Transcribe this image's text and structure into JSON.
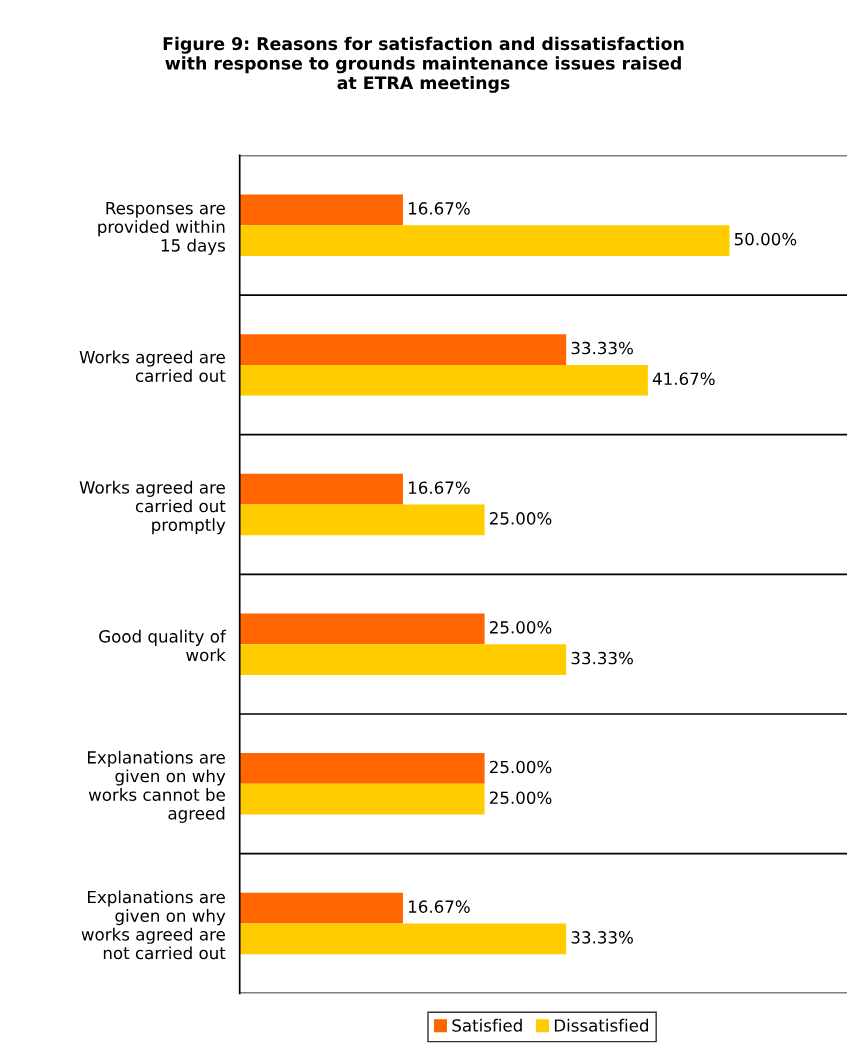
{
  "chart_data": {
    "type": "bar",
    "orientation": "horizontal",
    "title": "Figure 9: Reasons for satisfaction and dissatisfaction\nwith response to grounds maintenance issues raised\nat ETRA meetings",
    "categories": [
      "Responses are\nprovided within\n15 days",
      "Works agreed are\ncarried out",
      "Works agreed are\ncarried out\npromptly",
      "Good quality of\nwork",
      "Explanations are\ngiven on why\nworks cannot be\nagreed",
      "Explanations are\ngiven on why\nworks agreed are\nnot carried out"
    ],
    "series": [
      {
        "name": "Satisfied",
        "color": "#ff6600",
        "values": [
          16.67,
          33.33,
          16.67,
          25.0,
          25.0,
          16.67
        ],
        "value_labels": [
          "16.67%",
          "33.33%",
          "16.67%",
          "25.00%",
          "25.00%",
          "16.67%"
        ]
      },
      {
        "name": "Dissatisfied",
        "color": "#ffcc00",
        "values": [
          50.0,
          41.67,
          25.0,
          33.33,
          25.0,
          33.33
        ],
        "value_labels": [
          "50.00%",
          "41.67%",
          "25.00%",
          "33.33%",
          "25.00%",
          "33.33%"
        ]
      }
    ],
    "legend": "bottom",
    "grid": false
  }
}
